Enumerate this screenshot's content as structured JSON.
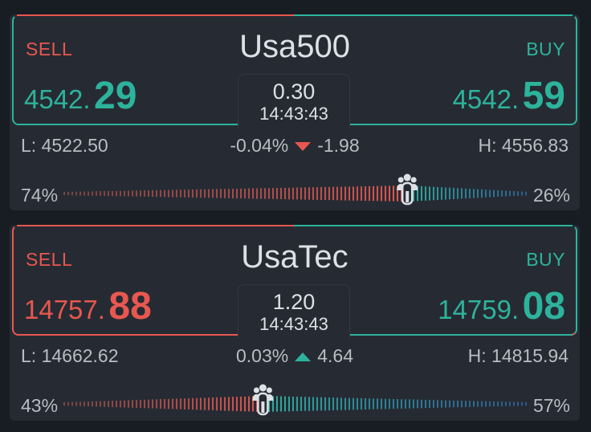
{
  "instruments": [
    {
      "symbol": "Usa500",
      "sell_label": "SELL",
      "buy_label": "BUY",
      "sell_price_int": "4542.",
      "sell_price_dec": "29",
      "buy_price_int": "4542.",
      "buy_price_dec": "59",
      "spread": "0.30",
      "time": "14:43:43",
      "low": "L: 4522.50",
      "high": "H: 4556.83",
      "change_pct": "-0.04%",
      "change_abs": "-1.98",
      "direction": "down",
      "sell_sentiment": "74%",
      "buy_sentiment": "26%",
      "sell_fraction": 0.74,
      "sell_price_color": "#2db39c",
      "buy_price_color": "#2db39c"
    },
    {
      "symbol": "UsaTec",
      "sell_label": "SELL",
      "buy_label": "BUY",
      "sell_price_int": "14757.",
      "sell_price_dec": "88",
      "buy_price_int": "14759.",
      "buy_price_dec": "08",
      "spread": "1.20",
      "time": "14:43:43",
      "low": "L: 14662.62",
      "high": "H: 14815.94",
      "change_pct": "0.03%",
      "change_abs": "4.64",
      "direction": "up",
      "sell_sentiment": "43%",
      "buy_sentiment": "57%",
      "sell_fraction": 0.43,
      "sell_price_color": "#e8574f",
      "buy_price_color": "#2db39c"
    }
  ],
  "colors": {
    "sell": "#e8574f",
    "buy": "#2db39c",
    "sell_bar_faint": "#7a4447",
    "buy_bar_faint": "#2c5c8f",
    "card_bg": "#262b33",
    "page_bg": "#181c23"
  },
  "icons": {
    "sentiment_marker": "crowd-icon"
  }
}
